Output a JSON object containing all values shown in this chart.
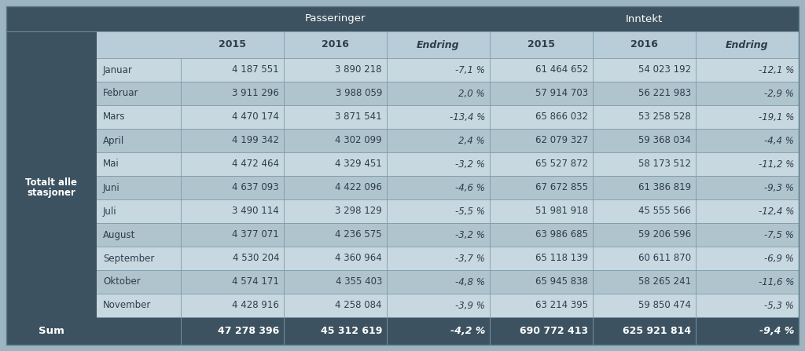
{
  "title_passeringer": "Passeringer",
  "title_inntekt": "Inntekt",
  "row_label_line1": "Totalt alle",
  "row_label_line2": "stasjoner",
  "months": [
    "Januar",
    "Februar",
    "Mars",
    "April",
    "Mai",
    "Juni",
    "Juli",
    "August",
    "September",
    "Oktober",
    "November"
  ],
  "pass_2015": [
    "4 187 551",
    "3 911 296",
    "4 470 174",
    "4 199 342",
    "4 472 464",
    "4 637 093",
    "3 490 114",
    "4 377 071",
    "4 530 204",
    "4 574 171",
    "4 428 916"
  ],
  "pass_2016": [
    "3 890 218",
    "3 988 059",
    "3 871 541",
    "4 302 099",
    "4 329 451",
    "4 422 096",
    "3 298 129",
    "4 236 575",
    "4 360 964",
    "4 355 403",
    "4 258 084"
  ],
  "pass_end": [
    "-7,1 %",
    "2,0 %",
    "-13,4 %",
    "2,4 %",
    "-3,2 %",
    "-4,6 %",
    "-5,5 %",
    "-3,2 %",
    "-3,7 %",
    "-4,8 %",
    "-3,9 %"
  ],
  "inn_2015": [
    "61 464 652",
    "57 914 703",
    "65 866 032",
    "62 079 327",
    "65 527 872",
    "67 672 855",
    "51 981 918",
    "63 986 685",
    "65 118 139",
    "65 945 838",
    "63 214 395"
  ],
  "inn_2016": [
    "54 023 192",
    "56 221 983",
    "53 258 528",
    "59 368 034",
    "58 173 512",
    "61 386 819",
    "45 555 566",
    "59 206 596",
    "60 611 870",
    "58 265 241",
    "59 850 474"
  ],
  "inn_end": [
    "-12,1 %",
    "-2,9 %",
    "-19,1 %",
    "-4,4 %",
    "-11,2 %",
    "-9,3 %",
    "-12,4 %",
    "-7,5 %",
    "-6,9 %",
    "-11,6 %",
    "-5,3 %"
  ],
  "sum_pass_2015": "47 278 396",
  "sum_pass_2016": "45 312 619",
  "sum_pass_end": "-4,2 %",
  "sum_inn_2015": "690 772 413",
  "sum_inn_2016": "625 921 814",
  "sum_inn_end": "-9,4 %",
  "color_header_dark": "#3d5260",
  "color_row_light": "#c8d8e0",
  "color_row_alt": "#b0c4ce",
  "color_left_panel": "#3d5260",
  "color_sum_bg": "#3d5260",
  "color_subheader_bg": "#b8cdd8",
  "color_bg": "#9db5c0",
  "color_white": "#ffffff",
  "color_dark_text": "#2c3e4a",
  "sum_label": "Sum"
}
